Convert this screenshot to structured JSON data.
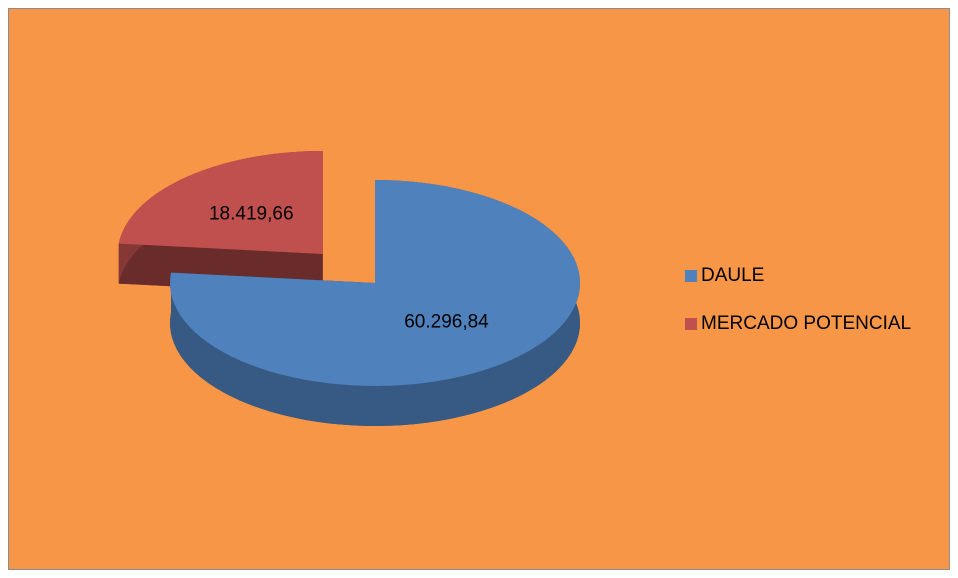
{
  "chart_data": {
    "type": "pie",
    "categories": [
      "DAULE",
      "MERCADO POTENCIAL"
    ],
    "values": [
      60296.84,
      18419.66
    ],
    "value_labels": [
      "60.296,84",
      "18.419,66"
    ],
    "colors": [
      "#4f81bd",
      "#c0504d"
    ],
    "legend": "right",
    "three_d": true
  }
}
